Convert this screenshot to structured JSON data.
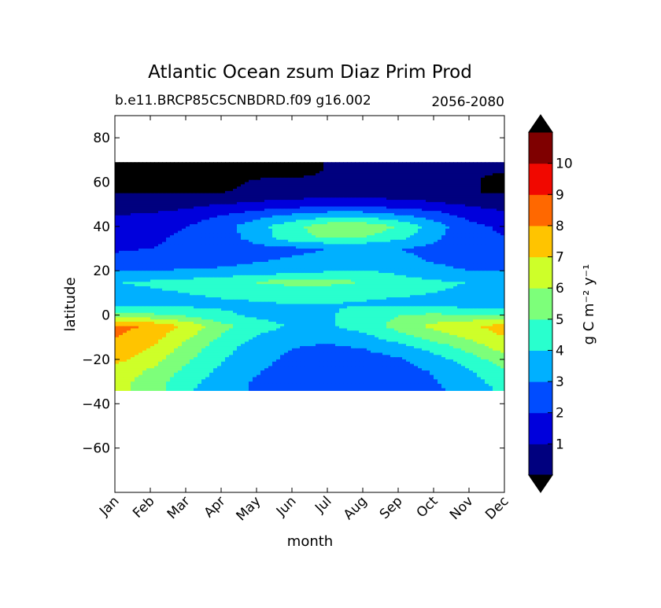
{
  "chart_data": {
    "type": "heatmap",
    "title": "Atlantic Ocean zsum Diaz Prim Prod",
    "subtitle_left": "b.e11.BRCP85C5CNBDRD.f09 g16.002",
    "subtitle_right": "2056-2080",
    "xlabel": "month",
    "ylabel": "latitude",
    "x_categories": [
      "Jan",
      "Feb",
      "Mar",
      "Apr",
      "May",
      "Jun",
      "Jul",
      "Aug",
      "Sep",
      "Oct",
      "Nov",
      "Dec"
    ],
    "ylim": [
      -80,
      90
    ],
    "yticks": [
      80,
      60,
      40,
      20,
      0,
      -20,
      -40,
      -60
    ],
    "ytick_labels": [
      "80",
      "60",
      "40",
      "20",
      "0",
      "−20",
      "−40",
      "−60"
    ],
    "data_lat_range": [
      -34,
      69
    ],
    "colorbar": {
      "label": "g C m⁻² y⁻¹",
      "levels": [
        0,
        1,
        2,
        3,
        4,
        5,
        6,
        7,
        8,
        9,
        10,
        11
      ],
      "tick_labels": [
        "1",
        "2",
        "3",
        "4",
        "5",
        "6",
        "7",
        "8",
        "9",
        "10"
      ],
      "colors": [
        "#00007f",
        "#0000dc",
        "#004cff",
        "#00b0ff",
        "#29ffce",
        "#7dff7a",
        "#ceff29",
        "#ffc400",
        "#ff6800",
        "#f10800",
        "#7f0000"
      ],
      "under_color": "#000000",
      "over_color": "#000000"
    },
    "grid": false,
    "latitudes": [
      -34,
      -30,
      -25,
      -20,
      -15,
      -10,
      -5,
      0,
      5,
      10,
      15,
      20,
      25,
      30,
      35,
      40,
      45,
      50,
      55,
      60,
      65
    ],
    "values": [
      [
        6.3,
        5.5,
        4.2,
        3.3,
        2.9,
        2.4,
        2.1,
        2.1,
        2.4,
        2.8,
        3.4,
        4.2
      ],
      [
        6.4,
        5.6,
        4.4,
        3.5,
        2.9,
        2.4,
        2.1,
        2.1,
        2.4,
        2.9,
        3.6,
        4.5
      ],
      [
        6.6,
        5.9,
        4.8,
        3.8,
        3.1,
        2.6,
        2.3,
        2.3,
        2.6,
        3.1,
        3.9,
        5.0
      ],
      [
        7.3,
        6.5,
        5.2,
        4.1,
        3.3,
        2.8,
        2.5,
        2.6,
        2.9,
        3.6,
        4.5,
        5.6
      ],
      [
        7.6,
        7.0,
        5.6,
        4.4,
        3.5,
        3.0,
        2.8,
        3.0,
        3.5,
        4.3,
        5.3,
        6.4
      ],
      [
        8.0,
        7.5,
        6.2,
        4.9,
        3.9,
        3.4,
        3.3,
        3.7,
        4.5,
        5.4,
        6.2,
        7.0
      ],
      [
        8.3,
        7.9,
        6.8,
        5.4,
        4.4,
        3.9,
        3.9,
        4.4,
        5.4,
        6.3,
        6.9,
        7.4
      ],
      [
        5.5,
        5.2,
        4.8,
        4.2,
        3.8,
        3.7,
        3.9,
        4.3,
        5.0,
        5.2,
        5.0,
        5.1
      ],
      [
        3.5,
        3.6,
        3.7,
        3.8,
        3.9,
        4.0,
        4.0,
        3.9,
        3.7,
        3.6,
        3.5,
        3.5
      ],
      [
        3.8,
        3.9,
        4.0,
        4.2,
        4.3,
        4.4,
        4.4,
        4.3,
        4.2,
        4.0,
        3.9,
        3.8
      ],
      [
        4.0,
        4.1,
        4.3,
        4.6,
        5.1,
        5.3,
        5.3,
        5.0,
        4.4,
        4.1,
        4.0,
        4.0
      ],
      [
        3.0,
        3.0,
        3.1,
        3.2,
        3.3,
        3.6,
        3.9,
        4.0,
        3.8,
        3.3,
        3.0,
        2.9
      ],
      [
        2.2,
        2.3,
        2.4,
        2.6,
        2.9,
        3.1,
        3.2,
        3.3,
        3.2,
        2.9,
        2.5,
        2.3
      ],
      [
        1.9,
        2.0,
        2.1,
        2.3,
        2.6,
        2.8,
        3.0,
        3.1,
        3.0,
        2.8,
        2.4,
        2.1
      ],
      [
        1.8,
        1.9,
        2.1,
        2.4,
        3.5,
        4.6,
        5.1,
        5.0,
        4.3,
        3.2,
        2.4,
        2.0
      ],
      [
        1.5,
        1.7,
        2.0,
        2.6,
        3.6,
        4.7,
        5.6,
        5.7,
        5.0,
        3.5,
        2.3,
        1.8
      ],
      [
        1.0,
        1.1,
        1.4,
        2.0,
        2.6,
        3.2,
        3.6,
        3.6,
        3.1,
        2.5,
        1.7,
        1.2
      ],
      [
        0.5,
        0.6,
        0.7,
        1.0,
        1.2,
        1.4,
        1.6,
        1.6,
        1.4,
        1.2,
        0.9,
        0.6
      ],
      [
        0.0,
        0.0,
        0.0,
        0.0,
        0.4,
        0.5,
        0.6,
        0.6,
        0.5,
        0.4,
        0.0,
        0.0
      ],
      [
        -0.5,
        -0.5,
        -0.5,
        -0.5,
        0.2,
        0.3,
        0.3,
        0.3,
        0.3,
        0.2,
        0.2,
        -0.5
      ],
      [
        -0.5,
        -0.5,
        -0.5,
        -0.5,
        -0.5,
        -0.5,
        0.1,
        0.1,
        0.1,
        0.1,
        0.1,
        0.1
      ]
    ]
  }
}
